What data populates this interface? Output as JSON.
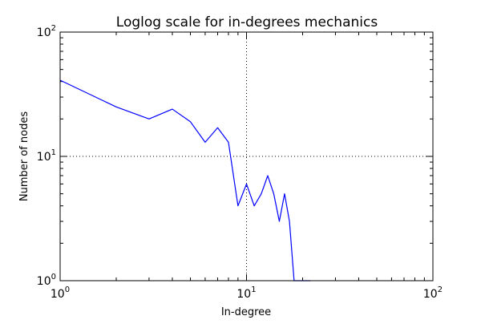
{
  "chart_data": {
    "type": "line",
    "title": "Loglog scale for in-degrees mechanics",
    "xlabel": "In-degree",
    "ylabel": "Number of nodes",
    "xscale": "log",
    "yscale": "log",
    "xlim": [
      1,
      100
    ],
    "ylim": [
      1,
      100
    ],
    "grid": "major, dotted",
    "x_ticks": [
      {
        "value": 1,
        "base": "10",
        "exp": "0"
      },
      {
        "value": 10,
        "base": "10",
        "exp": "1"
      },
      {
        "value": 100,
        "base": "10",
        "exp": "2"
      }
    ],
    "y_ticks": [
      {
        "value": 1,
        "base": "10",
        "exp": "0"
      },
      {
        "value": 10,
        "base": "10",
        "exp": "1"
      },
      {
        "value": 100,
        "base": "10",
        "exp": "2"
      }
    ],
    "series": [
      {
        "color": "#0000ff",
        "x": [
          1,
          2,
          3,
          4,
          5,
          6,
          7,
          8,
          9,
          10,
          11,
          12,
          13,
          14,
          15,
          16,
          17,
          18,
          19,
          20,
          21,
          22
        ],
        "y": [
          41,
          25,
          20,
          24,
          19,
          13,
          17,
          13,
          4,
          6,
          4,
          5,
          7,
          5,
          3,
          5,
          3,
          1,
          1,
          1,
          1,
          1
        ]
      }
    ]
  }
}
